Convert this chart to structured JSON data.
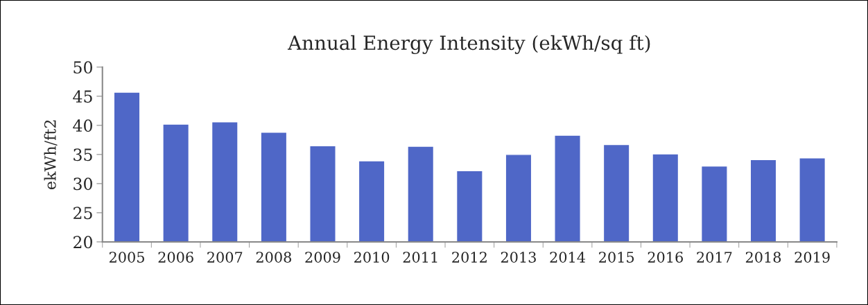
{
  "chart_data": {
    "type": "bar",
    "title": "Annual Energy Intensity (ekWh/sq ft)",
    "ylabel": "ekWh/ft2",
    "categories": [
      "2005",
      "2006",
      "2007",
      "2008",
      "2009",
      "2010",
      "2011",
      "2012",
      "2013",
      "2014",
      "2015",
      "2016",
      "2017",
      "2018",
      "2019"
    ],
    "values": [
      45.7,
      40.2,
      40.6,
      38.8,
      36.5,
      33.9,
      36.4,
      32.2,
      35.0,
      38.3,
      36.7,
      35.1,
      33.0,
      34.1,
      34.4
    ],
    "color": "#4f67c7",
    "ylim": [
      20,
      50
    ],
    "yticks": [
      20,
      25,
      30,
      35,
      40,
      45,
      50
    ],
    "grid": false,
    "legend": false
  }
}
